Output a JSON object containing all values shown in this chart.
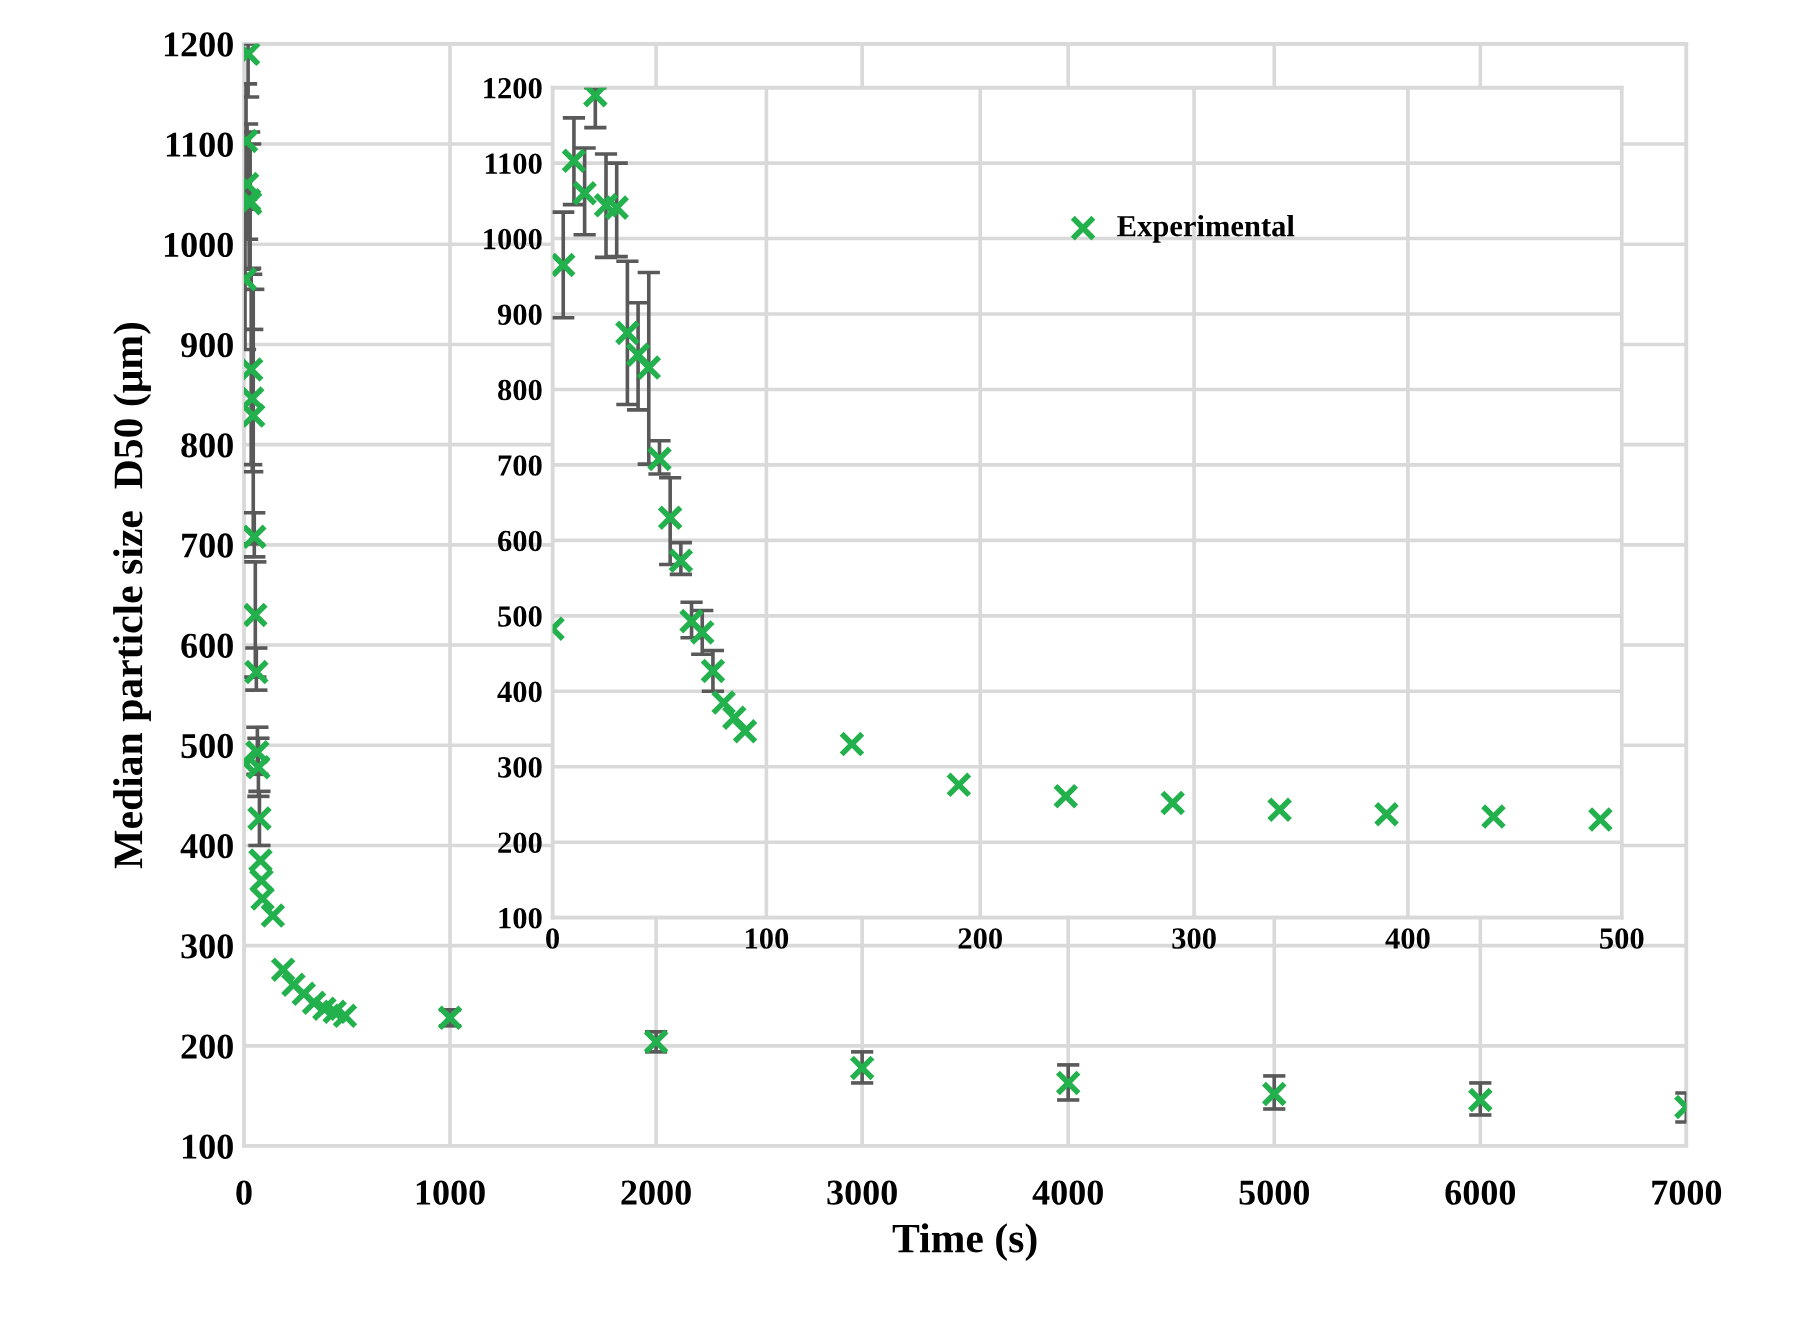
{
  "chart_data": [
    {
      "type": "scatter",
      "xlabel": "Time (s)",
      "ylabel": "Median particle size  D50 (μm)",
      "xlim": [
        0,
        7000
      ],
      "ylim": [
        100,
        1200
      ],
      "xticks": [
        0,
        1000,
        2000,
        3000,
        4000,
        5000,
        6000,
        7000
      ],
      "yticks": [
        100,
        200,
        300,
        400,
        500,
        600,
        700,
        800,
        900,
        1000,
        1100,
        1200
      ],
      "grid": true,
      "marker": "cross",
      "legend": false,
      "series": [
        {
          "color": "#22b14c",
          "x": [
            0,
            5,
            10,
            15,
            20,
            25,
            30,
            35,
            40,
            45,
            50,
            55,
            60,
            65,
            70,
            75,
            80,
            85,
            90,
            140,
            190,
            240,
            290,
            340,
            390,
            440,
            490,
            1000,
            2000,
            3000,
            4000,
            5000,
            6000,
            7000
          ],
          "values": [
            483,
            965,
            1103,
            1060,
            1190,
            1044,
            1041,
            875,
            846,
            829,
            708,
            630,
            573,
            493,
            478,
            427,
            385,
            365,
            347,
            330,
            276,
            261,
            252,
            243,
            237,
            234,
            230,
            228,
            204,
            178,
            163,
            152,
            146,
            139
          ],
          "errors": [
            null,
            [
              895,
              1035
            ],
            [
              1045,
              1160
            ],
            [
              1005,
              1120
            ],
            [
              1147,
              1200
            ],
            [
              975,
              1112
            ],
            [
              976,
              1100
            ],
            [
              780,
              970
            ],
            [
              773,
              915
            ],
            [
              701,
              955
            ],
            [
              688,
              732
            ],
            [
              568,
              683
            ],
            [
              555,
              597
            ],
            [
              471,
              518
            ],
            [
              449,
              507
            ],
            [
              400,
              454
            ],
            null,
            null,
            null,
            null,
            null,
            null,
            null,
            null,
            null,
            null,
            null,
            8,
            10,
            [
              163,
              194
            ],
            [
              146,
              181
            ],
            [
              137,
              170
            ],
            [
              131,
              163
            ],
            [
              124,
              153
            ]
          ]
        }
      ]
    },
    {
      "type": "scatter",
      "xlim": [
        0,
        500
      ],
      "ylim": [
        100,
        1200
      ],
      "xticks": [
        0,
        100,
        200,
        300,
        400,
        500
      ],
      "yticks": [
        100,
        200,
        300,
        400,
        500,
        600,
        700,
        800,
        900,
        1000,
        1100,
        1200
      ],
      "grid": true,
      "marker": "cross",
      "legend": "top right",
      "series": [
        {
          "name": "Experimental",
          "color": "#22b14c",
          "x": [
            0,
            5,
            10,
            15,
            20,
            25,
            30,
            35,
            40,
            45,
            50,
            55,
            60,
            65,
            70,
            75,
            80,
            85,
            90,
            140,
            190,
            240,
            290,
            340,
            390,
            440,
            490
          ],
          "values": [
            483,
            965,
            1103,
            1060,
            1190,
            1044,
            1041,
            875,
            846,
            829,
            708,
            630,
            573,
            493,
            478,
            427,
            385,
            365,
            347,
            330,
            276,
            261,
            252,
            243,
            237,
            234,
            230
          ],
          "errors": [
            null,
            [
              895,
              1035
            ],
            [
              1045,
              1160
            ],
            [
              1005,
              1120
            ],
            [
              1147,
              1200
            ],
            [
              975,
              1112
            ],
            [
              976,
              1100
            ],
            [
              780,
              970
            ],
            [
              773,
              915
            ],
            [
              701,
              955
            ],
            [
              688,
              732
            ],
            [
              568,
              683
            ],
            [
              555,
              597
            ],
            [
              471,
              518
            ],
            [
              449,
              507
            ],
            [
              400,
              454
            ],
            null,
            null,
            null,
            null,
            null,
            null,
            null,
            null,
            null,
            null,
            null
          ]
        }
      ]
    }
  ]
}
